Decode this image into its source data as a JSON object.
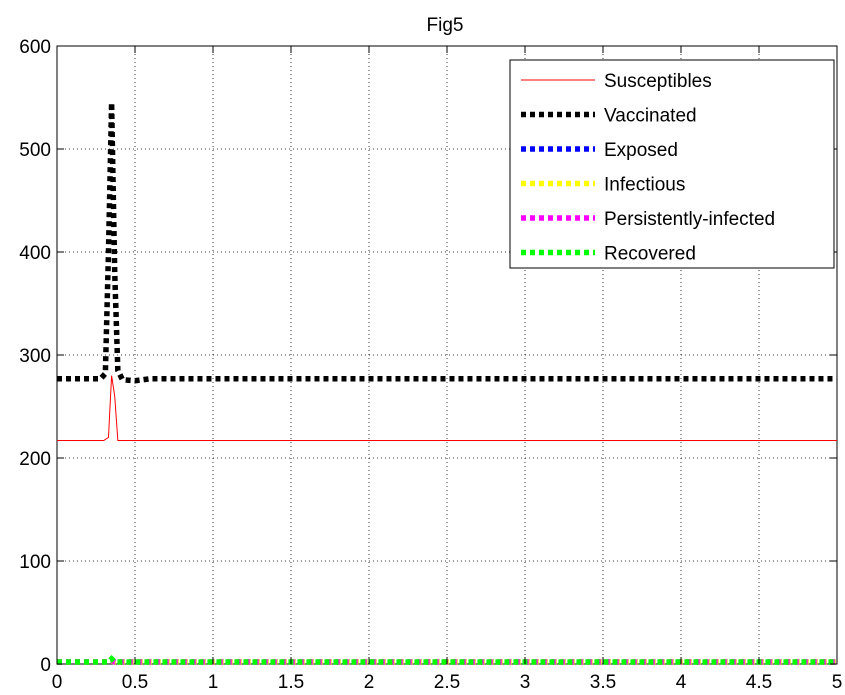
{
  "chart_data": {
    "type": "line",
    "title": "Fig5",
    "xlabel": "",
    "ylabel": "",
    "xlim": [
      0,
      5
    ],
    "ylim": [
      0,
      600
    ],
    "grid": true,
    "legend_position": "top-right",
    "x_ticks": [
      0,
      0.5,
      1,
      1.5,
      2,
      2.5,
      3,
      3.5,
      4,
      4.5,
      5
    ],
    "x_tick_labels": [
      "0",
      "0.5",
      "1",
      "1.5",
      "2",
      "2.5",
      "3",
      "3.5",
      "4",
      "4.5",
      "5"
    ],
    "y_ticks": [
      0,
      100,
      200,
      300,
      400,
      500,
      600
    ],
    "y_tick_labels": [
      "0",
      "100",
      "200",
      "300",
      "400",
      "500",
      "600"
    ],
    "series": [
      {
        "name": "Susceptibles",
        "color": "#ff0000",
        "style": "solid-thin",
        "x": [
          0,
          0.3,
          0.33,
          0.35,
          0.37,
          0.39,
          0.42,
          5
        ],
        "y": [
          217,
          217,
          220,
          280,
          260,
          217,
          217,
          217
        ]
      },
      {
        "name": "Vaccinated",
        "color": "#000000",
        "style": "dotted-thick",
        "x": [
          0,
          0.28,
          0.31,
          0.33,
          0.35,
          0.37,
          0.39,
          0.42,
          0.5,
          0.6,
          5
        ],
        "y": [
          277,
          277,
          282,
          400,
          545,
          380,
          285,
          276,
          275,
          277,
          277
        ]
      },
      {
        "name": "Exposed",
        "color": "#0000ff",
        "style": "dotted-thick",
        "x": [
          0,
          0.33,
          0.35,
          0.37,
          3.0,
          5
        ],
        "y": [
          2,
          2,
          3,
          2,
          2,
          2
        ]
      },
      {
        "name": "Infectious",
        "color": "#ffff00",
        "style": "dotted-thick",
        "x": [
          0,
          0.33,
          0.35,
          0.37,
          3.0,
          5
        ],
        "y": [
          2,
          2,
          3,
          2,
          2,
          2
        ]
      },
      {
        "name": "Persistently-infected",
        "color": "#ff00ff",
        "style": "dotted-thick",
        "x": [
          0,
          0.33,
          0.35,
          0.37,
          3.0,
          5
        ],
        "y": [
          2,
          2,
          4,
          2,
          2,
          2
        ]
      },
      {
        "name": "Recovered",
        "color": "#00ff00",
        "style": "dotted-thick",
        "x": [
          0,
          0.33,
          0.35,
          0.37,
          5
        ],
        "y": [
          2,
          2,
          5,
          2,
          2
        ]
      }
    ]
  }
}
